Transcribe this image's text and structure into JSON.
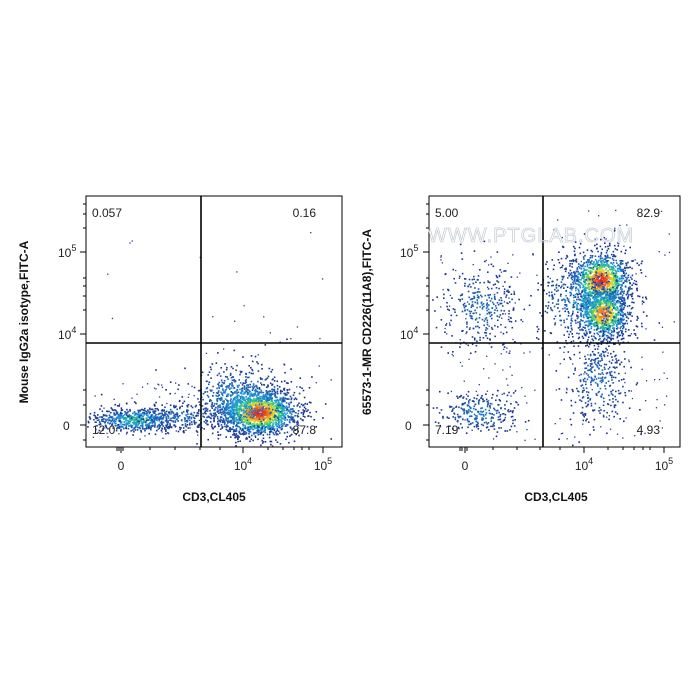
{
  "watermark": "WWW.PTGLAB.COM",
  "colors": {
    "gate": "#000000",
    "density_low": "#1a2b8c",
    "density_high": "#e0201a"
  },
  "chart_data": [
    {
      "type": "scatter",
      "subtype": "flow-cytometry-density-plot",
      "xlabel": "CD3,CL405",
      "ylabel": "Mouse IgG2a isotype,FITC-A",
      "x_ticks": [
        "0",
        "10^4",
        "10^5"
      ],
      "y_ticks": [
        "0",
        "10^4",
        "10^5"
      ],
      "quadrants": {
        "upper_left": "0.057",
        "upper_right": "0.16",
        "lower_left": "12.0",
        "lower_right": "87.8"
      },
      "populations": [
        {
          "quadrant": "lower_left",
          "relative_density": 0.35
        },
        {
          "quadrant": "lower_right",
          "relative_density": 1.0
        }
      ]
    },
    {
      "type": "scatter",
      "subtype": "flow-cytometry-density-plot",
      "xlabel": "CD3,CL405",
      "ylabel": "65573-1-MR CD226(11A8),FITC-A",
      "x_ticks": [
        "0",
        "10^4",
        "10^5"
      ],
      "y_ticks": [
        "0",
        "10^4",
        "10^5"
      ],
      "quadrants": {
        "upper_left": "5.00",
        "upper_right": "82.9",
        "lower_left": "7.19",
        "lower_right": "4.93"
      },
      "populations": [
        {
          "quadrant": "upper_right",
          "relative_density": 1.0
        },
        {
          "quadrant": "upper_left",
          "relative_density": 0.2
        },
        {
          "quadrant": "lower_left",
          "relative_density": 0.25
        },
        {
          "quadrant": "lower_right",
          "relative_density": 0.2
        }
      ]
    }
  ]
}
